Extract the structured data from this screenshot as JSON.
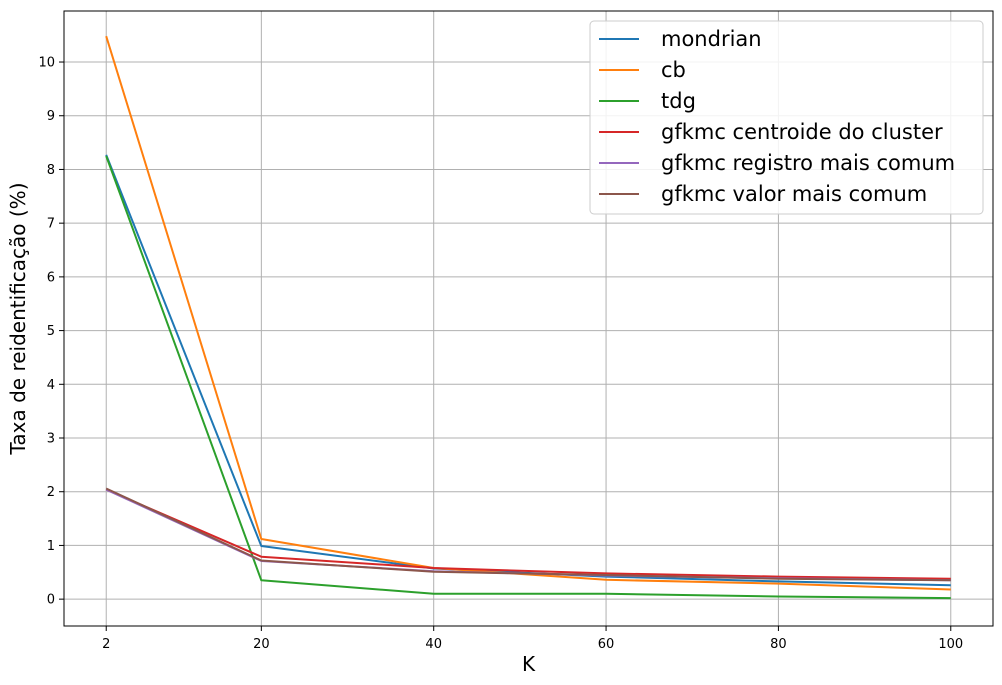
{
  "chart_data": {
    "type": "line",
    "title": "",
    "xlabel": "K",
    "ylabel": "Taxa de reidentificação (%)",
    "x": [
      2,
      20,
      40,
      60,
      80,
      100
    ],
    "xticks": [
      2,
      20,
      40,
      60,
      80,
      100
    ],
    "yticks": [
      0,
      1,
      2,
      3,
      4,
      5,
      6,
      7,
      8,
      9,
      10
    ],
    "xlim": [
      -2.9,
      104.9
    ],
    "ylim": [
      -0.5,
      10.95
    ],
    "grid": true,
    "legend_position": "top-right",
    "series": [
      {
        "name": "mondrian",
        "color": "#1f77b4",
        "values": [
          8.27,
          0.99,
          0.57,
          0.42,
          0.33,
          0.26
        ]
      },
      {
        "name": "cb",
        "color": "#ff7f0e",
        "values": [
          10.48,
          1.12,
          0.58,
          0.36,
          0.29,
          0.18
        ]
      },
      {
        "name": "tdg",
        "color": "#2ca02c",
        "values": [
          8.25,
          0.35,
          0.1,
          0.1,
          0.05,
          0.02
        ]
      },
      {
        "name": "gfkmc centroide do cluster",
        "color": "#d62728",
        "values": [
          2.04,
          0.79,
          0.58,
          0.48,
          0.42,
          0.38
        ]
      },
      {
        "name": "gfkmc registro mais comum",
        "color": "#9467bd",
        "values": [
          2.04,
          0.71,
          0.52,
          0.44,
          0.39,
          0.35
        ]
      },
      {
        "name": "gfkmc valor mais comum",
        "color": "#8c564b",
        "values": [
          2.06,
          0.72,
          0.51,
          0.45,
          0.38,
          0.35
        ]
      }
    ]
  }
}
